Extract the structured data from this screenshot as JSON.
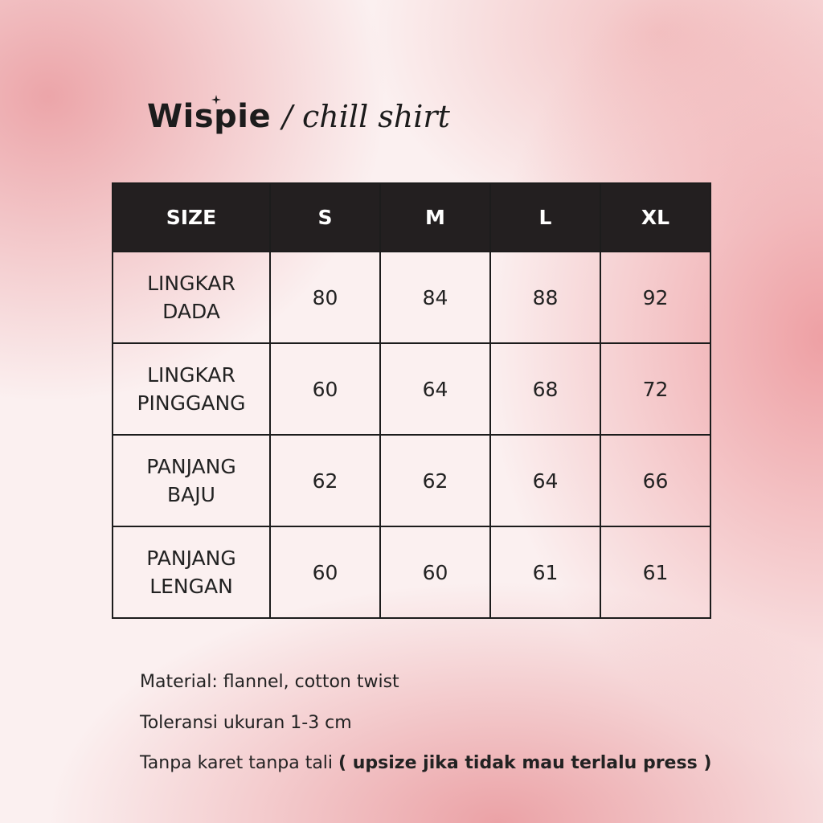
{
  "header": {
    "brand": "Wispie",
    "subtitle": "/ chill shirt"
  },
  "table": {
    "headers": [
      "SIZE",
      "S",
      "M",
      "L",
      "XL"
    ],
    "rows": [
      {
        "label": [
          "LINGKAR",
          "DADA"
        ],
        "values": [
          "80",
          "84",
          "88",
          "92"
        ]
      },
      {
        "label": [
          "LINGKAR",
          "PINGGANG"
        ],
        "values": [
          "60",
          "64",
          "68",
          "72"
        ]
      },
      {
        "label": [
          "PANJANG",
          "BAJU"
        ],
        "values": [
          "62",
          "62",
          "64",
          "66"
        ]
      },
      {
        "label": [
          "PANJANG",
          "LENGAN"
        ],
        "values": [
          "60",
          "60",
          "61",
          "61"
        ]
      }
    ]
  },
  "notes": {
    "material": "Material: flannel, cotton twist",
    "tolerance": "Toleransi ukuran 1-3 cm",
    "fit": "Tanpa karet tanpa tali ",
    "fit_bold": "( upsize jika tidak mau terlalu press )"
  }
}
